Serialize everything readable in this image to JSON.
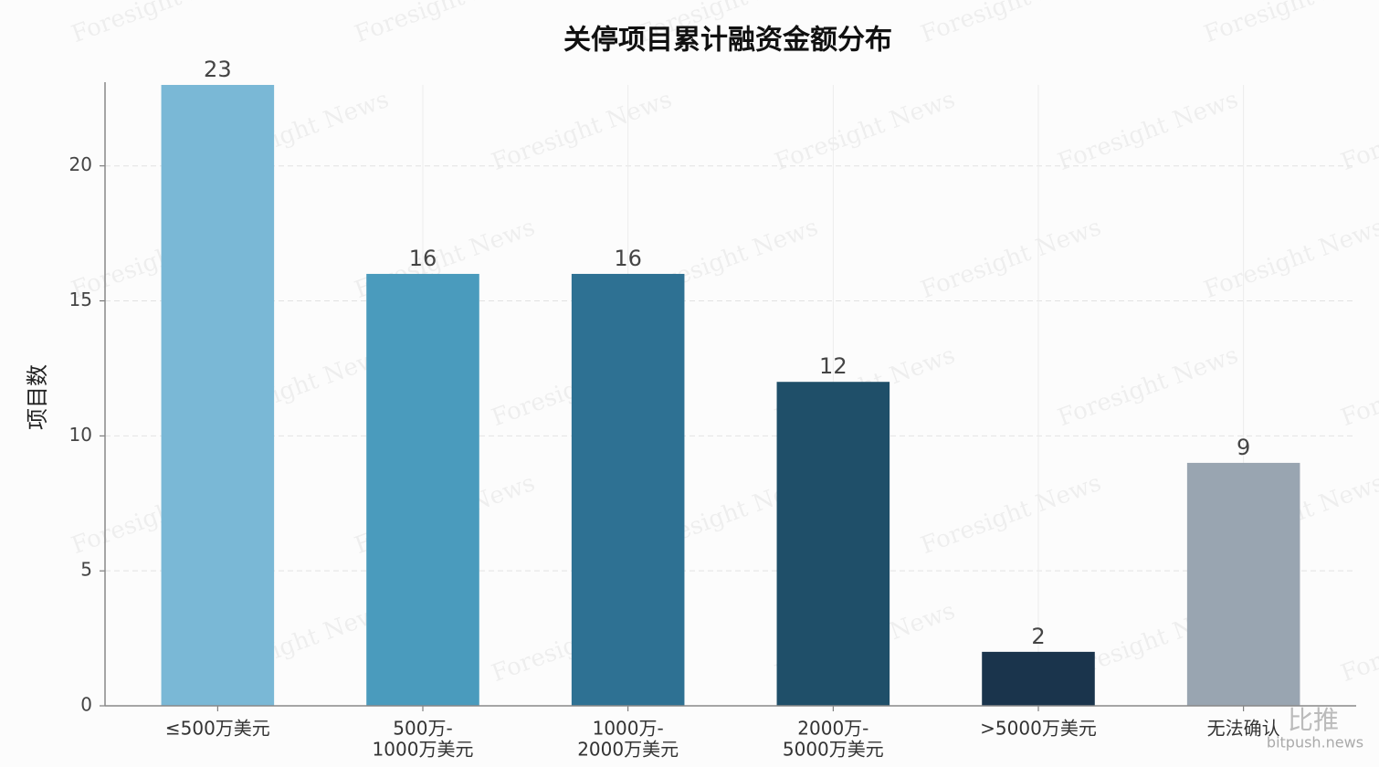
{
  "chart_data": {
    "type": "bar",
    "title": "关停项目累计融资金额分布",
    "y_label": "项目数",
    "categories": [
      [
        "≤500万美元"
      ],
      [
        "500万-",
        "1000万美元"
      ],
      [
        "1000万-",
        "2000万美元"
      ],
      [
        "2000万-",
        "5000万美元"
      ],
      [
        ">5000万美元"
      ],
      [
        "无法确认"
      ]
    ],
    "values": [
      23,
      16,
      16,
      12,
      2,
      9
    ],
    "colors": [
      "#7ab8d6",
      "#4a9bbd",
      "#2e7193",
      "#1f4f69",
      "#1a344c",
      "#99a5b1"
    ],
    "ylim": [
      0,
      23
    ],
    "yticks": [
      0,
      5,
      10,
      15,
      20
    ],
    "grid": true,
    "watermarks": [
      "Foresight News",
      "比推",
      "bitpush.news"
    ]
  }
}
